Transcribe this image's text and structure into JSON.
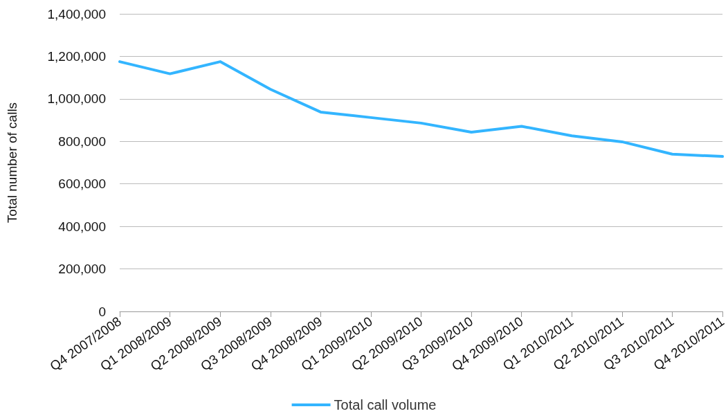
{
  "chart_data": {
    "type": "line",
    "ylabel": "Total number of calls",
    "categories": [
      "Q4 2007/2008",
      "Q1 2008/2009",
      "Q2 2008/2009",
      "Q3 2008/2009",
      "Q4 2008/2009",
      "Q1 2009/2010",
      "Q2 2009/2010",
      "Q3 2009/2010",
      "Q4 2009/2010",
      "Q1 2010/2011",
      "Q2 2010/2011",
      "Q3 2010/2011",
      "Q4 2010/2011"
    ],
    "series": [
      {
        "name": "Total call volume",
        "color": "#33b5ff",
        "values": [
          1175000,
          1118000,
          1175000,
          1045000,
          938000,
          912000,
          886000,
          843000,
          871000,
          826000,
          798000,
          740000,
          729000
        ]
      }
    ],
    "ylim": [
      0,
      1400000
    ],
    "yticks": [
      {
        "value": 0,
        "label": "0"
      },
      {
        "value": 200000,
        "label": "200,000"
      },
      {
        "value": 400000,
        "label": "400,000"
      },
      {
        "value": 600000,
        "label": "600,000"
      },
      {
        "value": 800000,
        "label": "800,000"
      },
      {
        "value": 1000000,
        "label": "1,000,000"
      },
      {
        "value": 1200000,
        "label": "1,200,000"
      },
      {
        "value": 1400000,
        "label": "1,400,000"
      }
    ],
    "grid": "y",
    "legend": "bottom",
    "marker": "none",
    "line_style": "solid"
  }
}
